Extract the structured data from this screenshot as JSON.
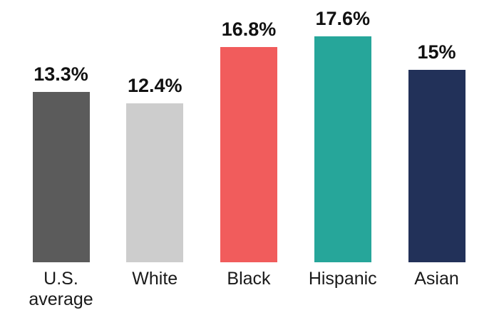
{
  "chart_data": {
    "type": "bar",
    "title": "",
    "unit": "%",
    "categories": [
      "U.S. average",
      "White",
      "Black",
      "Hispanic",
      "Asian"
    ],
    "category_display": [
      "U.S.\naverage",
      "White",
      "Black",
      "Hispanic",
      "Asian"
    ],
    "values": [
      13.3,
      12.4,
      16.8,
      17.6,
      15
    ],
    "value_labels": [
      "13.3%",
      "12.4%",
      "16.8%",
      "17.6%",
      "15%"
    ],
    "colors": [
      "#5b5b5b",
      "#cdcdcd",
      "#f15c5c",
      "#26a69a",
      "#223159"
    ],
    "ylim": [
      0,
      18
    ],
    "grid": false,
    "legend": false,
    "axes_visible": false,
    "value_label_position": "above-bar",
    "background_color": "#ffffff",
    "text_color": "#111111"
  }
}
